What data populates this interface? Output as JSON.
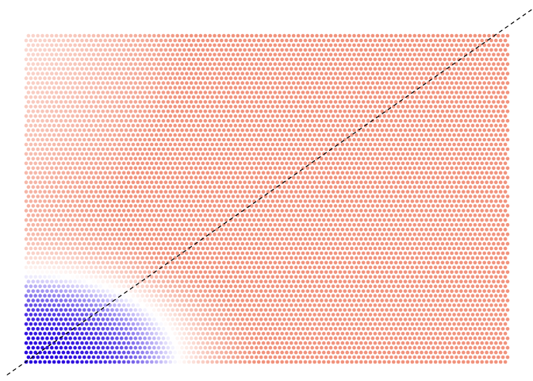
{
  "chart_data": {
    "type": "scatter",
    "title": "",
    "xlabel": "",
    "ylabel": "",
    "grid": false,
    "legend": "none",
    "colormap": {
      "name": "diverging",
      "low": "#2200dd",
      "mid": "#ffffff",
      "high": "#ee8066",
      "domain": [
        -1,
        0,
        1
      ]
    },
    "grid_points": {
      "columns": 104,
      "rows": 70
    },
    "x_range": [
      0,
      1
    ],
    "y_range": [
      0,
      1
    ],
    "boundary_line": {
      "style": "dashed",
      "color": "#000000",
      "from": [
        -0.04,
        -0.04
      ],
      "to": [
        1.05,
        1.08
      ]
    }
  }
}
